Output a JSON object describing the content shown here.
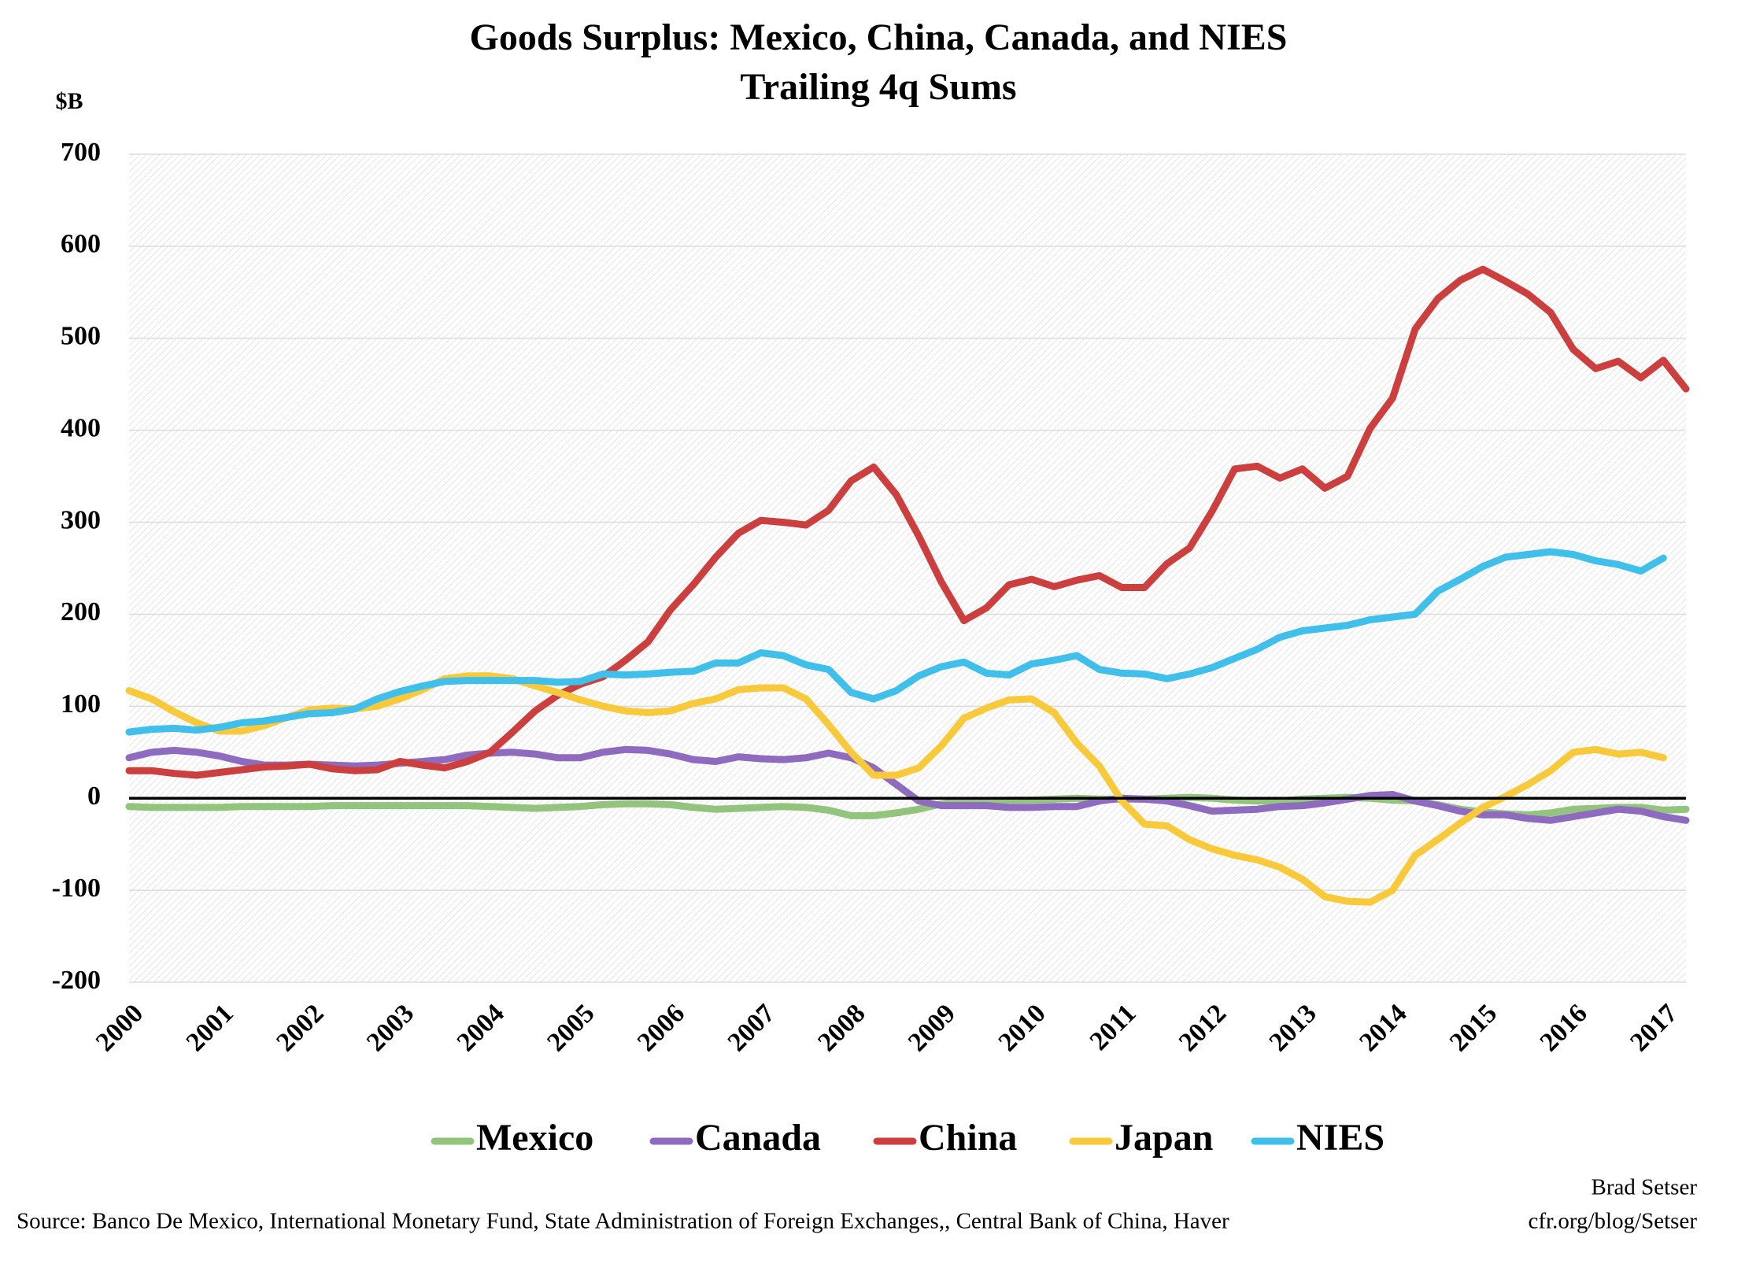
{
  "chart_data": {
    "type": "line",
    "title": "Goods Surplus: Mexico, China, Canada, and NIES",
    "subtitle": "Trailing 4q Sums",
    "y_label": "$B",
    "source": "Source: Banco De Mexico, International Monetary Fund, State Administration of Foreign Exchanges,, Central Bank of China, Haver",
    "credit": [
      "Brad Setser",
      "cfr.org/blog/Setser"
    ],
    "categories": [
      "2000",
      null,
      null,
      null,
      "2001",
      null,
      null,
      null,
      "2002",
      null,
      null,
      null,
      "2003",
      null,
      null,
      null,
      "2004",
      null,
      null,
      null,
      "2005",
      null,
      null,
      null,
      "2006",
      null,
      null,
      null,
      "2007",
      null,
      null,
      null,
      "2008",
      null,
      null,
      null,
      "2009",
      null,
      null,
      null,
      "2010",
      null,
      null,
      null,
      "2011",
      null,
      null,
      null,
      "2012",
      null,
      null,
      null,
      "2013",
      null,
      null,
      null,
      "2014",
      null,
      null,
      null,
      "2015",
      null,
      null,
      null,
      "2016",
      null,
      null,
      null,
      "2017",
      null
    ],
    "ylim": [
      -200,
      700
    ],
    "yticks": [
      -200,
      -100,
      0,
      100,
      200,
      300,
      400,
      500,
      600,
      700
    ],
    "grid": true,
    "legend": "bottom",
    "series": [
      {
        "name": "Mexico",
        "color": "#93c47d",
        "values": [
          -9,
          -10,
          -10,
          -10,
          -10,
          -9,
          -9,
          -9,
          -9,
          -8,
          -8,
          -8,
          -8,
          -8,
          -8,
          -8,
          -9,
          -10,
          -11,
          -10,
          -9,
          -7,
          -6,
          -6,
          -7,
          -10,
          -12,
          -11,
          -10,
          -9,
          -10,
          -13,
          -19,
          -19,
          -16,
          -12,
          -6,
          -3,
          -3,
          -2,
          -2,
          -1,
          0,
          -1,
          -1,
          -1,
          0,
          1,
          0,
          -2,
          -3,
          -3,
          -1,
          0,
          1,
          0,
          -2,
          -3,
          -7,
          -12,
          -15,
          -17,
          -18,
          -16,
          -12,
          -11,
          -10,
          -10,
          -13,
          -12
        ]
      },
      {
        "name": "Canada",
        "color": "#8e6bbf",
        "values": [
          44,
          50,
          52,
          50,
          46,
          40,
          36,
          36,
          37,
          36,
          35,
          36,
          38,
          40,
          42,
          47,
          49,
          50,
          48,
          44,
          44,
          50,
          53,
          52,
          48,
          42,
          40,
          45,
          43,
          42,
          44,
          49,
          44,
          33,
          15,
          -3,
          -8,
          -8,
          -8,
          -10,
          -10,
          -9,
          -9,
          -3,
          0,
          -1,
          -3,
          -8,
          -14,
          -13,
          -12,
          -9,
          -8,
          -5,
          -1,
          3,
          4,
          -3,
          -8,
          -14,
          -18,
          -18,
          -22,
          -24,
          -20,
          -16,
          -12,
          -14,
          -20,
          -24
        ]
      },
      {
        "name": "China",
        "color": "#cc3f3f",
        "values": [
          30,
          30,
          27,
          25,
          28,
          31,
          34,
          35,
          37,
          32,
          30,
          31,
          40,
          36,
          33,
          40,
          50,
          72,
          95,
          112,
          124,
          132,
          150,
          170,
          205,
          232,
          262,
          288,
          302,
          300,
          297,
          313,
          345,
          360,
          330,
          285,
          235,
          193,
          207,
          232,
          238,
          230,
          237,
          242,
          229,
          229,
          255,
          272,
          312,
          358,
          361,
          348,
          358,
          337,
          350,
          402,
          435,
          510,
          543,
          563,
          575,
          562,
          548,
          528,
          488,
          467,
          475,
          457,
          476,
          445
        ]
      },
      {
        "name": "Japan",
        "color": "#f9c93c",
        "values": [
          117,
          108,
          94,
          82,
          73,
          73,
          79,
          88,
          96,
          98,
          97,
          100,
          108,
          118,
          130,
          133,
          133,
          130,
          122,
          115,
          107,
          100,
          95,
          93,
          95,
          103,
          108,
          118,
          120,
          120,
          108,
          80,
          50,
          25,
          25,
          33,
          57,
          87,
          98,
          107,
          108,
          93,
          60,
          35,
          -3,
          -28,
          -30,
          -45,
          -55,
          -62,
          -67,
          -75,
          -88,
          -107,
          -112,
          -113,
          -100,
          -62,
          -45,
          -27,
          -10,
          2,
          15,
          30,
          50,
          53,
          48,
          50,
          44,
          null
        ]
      },
      {
        "name": "NIES",
        "color": "#3fbfea",
        "values": [
          72,
          75,
          76,
          74,
          77,
          82,
          84,
          88,
          92,
          93,
          97,
          108,
          116,
          122,
          127,
          128,
          128,
          128,
          128,
          126,
          127,
          135,
          134,
          135,
          137,
          138,
          147,
          147,
          158,
          155,
          145,
          140,
          115,
          108,
          117,
          133,
          143,
          148,
          136,
          134,
          146,
          150,
          155,
          140,
          136,
          135,
          130,
          135,
          142,
          152,
          162,
          175,
          182,
          185,
          188,
          194,
          197,
          200,
          225,
          238,
          252,
          262,
          265,
          268,
          265,
          258,
          254,
          247,
          261,
          null
        ]
      }
    ]
  }
}
